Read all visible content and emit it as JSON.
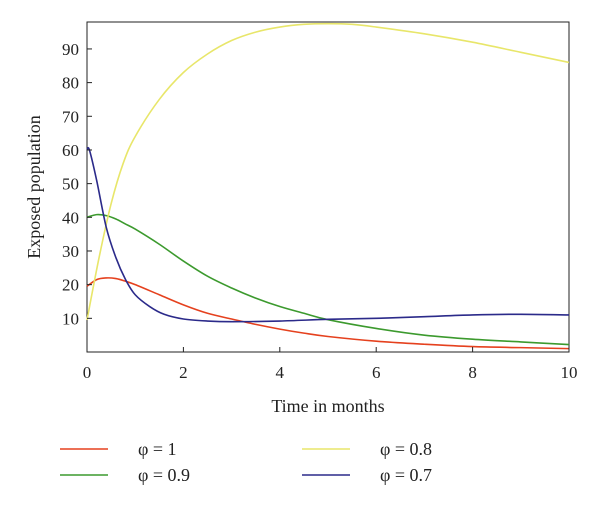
{
  "chart_data": {
    "type": "line",
    "xlabel": "Time in months",
    "ylabel": "Exposed population",
    "xlim": [
      0,
      10
    ],
    "ylim": [
      0,
      98
    ],
    "x_ticks": [
      0,
      2,
      4,
      6,
      8,
      10
    ],
    "y_ticks": [
      10,
      20,
      30,
      40,
      50,
      60,
      70,
      80,
      90
    ],
    "grid": false,
    "legend_position": "bottom",
    "series": [
      {
        "name": "φ = 1",
        "color": "#e5411e",
        "x": [
          0,
          0.2,
          0.4,
          0.6,
          0.8,
          1,
          1.5,
          2,
          2.5,
          3,
          3.5,
          4,
          4.5,
          5,
          6,
          7,
          8,
          9,
          10
        ],
        "y": [
          19.5,
          21.5,
          22,
          21.8,
          21,
          20,
          17,
          14,
          11.5,
          9.8,
          8.2,
          6.8,
          5.6,
          4.6,
          3.2,
          2.3,
          1.6,
          1.3,
          1
        ]
      },
      {
        "name": "φ = 0.9",
        "color": "#3c9a2e",
        "x": [
          0,
          0.2,
          0.4,
          0.6,
          0.8,
          1,
          1.5,
          2,
          2.5,
          3,
          3.5,
          4,
          4.5,
          5,
          6,
          7,
          8,
          9,
          10
        ],
        "y": [
          40,
          40.8,
          40.5,
          39.5,
          38,
          36.5,
          32,
          27,
          22.5,
          19,
          16,
          13.5,
          11.5,
          9.6,
          7,
          5,
          3.8,
          3,
          2.2
        ]
      },
      {
        "name": "φ = 0.8",
        "color": "#e8e66a",
        "x": [
          0,
          0.25,
          0.5,
          0.75,
          1,
          1.5,
          2,
          2.5,
          3,
          3.5,
          4,
          4.5,
          5,
          5.5,
          6,
          7,
          8,
          9,
          10
        ],
        "y": [
          9.5,
          28,
          44,
          56,
          64,
          75,
          83,
          88.5,
          92.5,
          95,
          96.5,
          97.3,
          97.5,
          97.3,
          96.5,
          94.5,
          92,
          89,
          86
        ]
      },
      {
        "name": "φ = 0.7",
        "color": "#2b2a8a",
        "x": [
          0,
          0.05,
          0.2,
          0.4,
          0.6,
          0.8,
          1,
          1.3,
          1.6,
          2,
          2.5,
          3,
          4,
          5,
          6,
          7,
          8,
          9,
          10
        ],
        "y": [
          60,
          60,
          51,
          37,
          28,
          21.5,
          17,
          13.5,
          11.2,
          9.8,
          9.2,
          9,
          9.2,
          9.7,
          10,
          10.5,
          11,
          11.2,
          11
        ]
      }
    ]
  }
}
